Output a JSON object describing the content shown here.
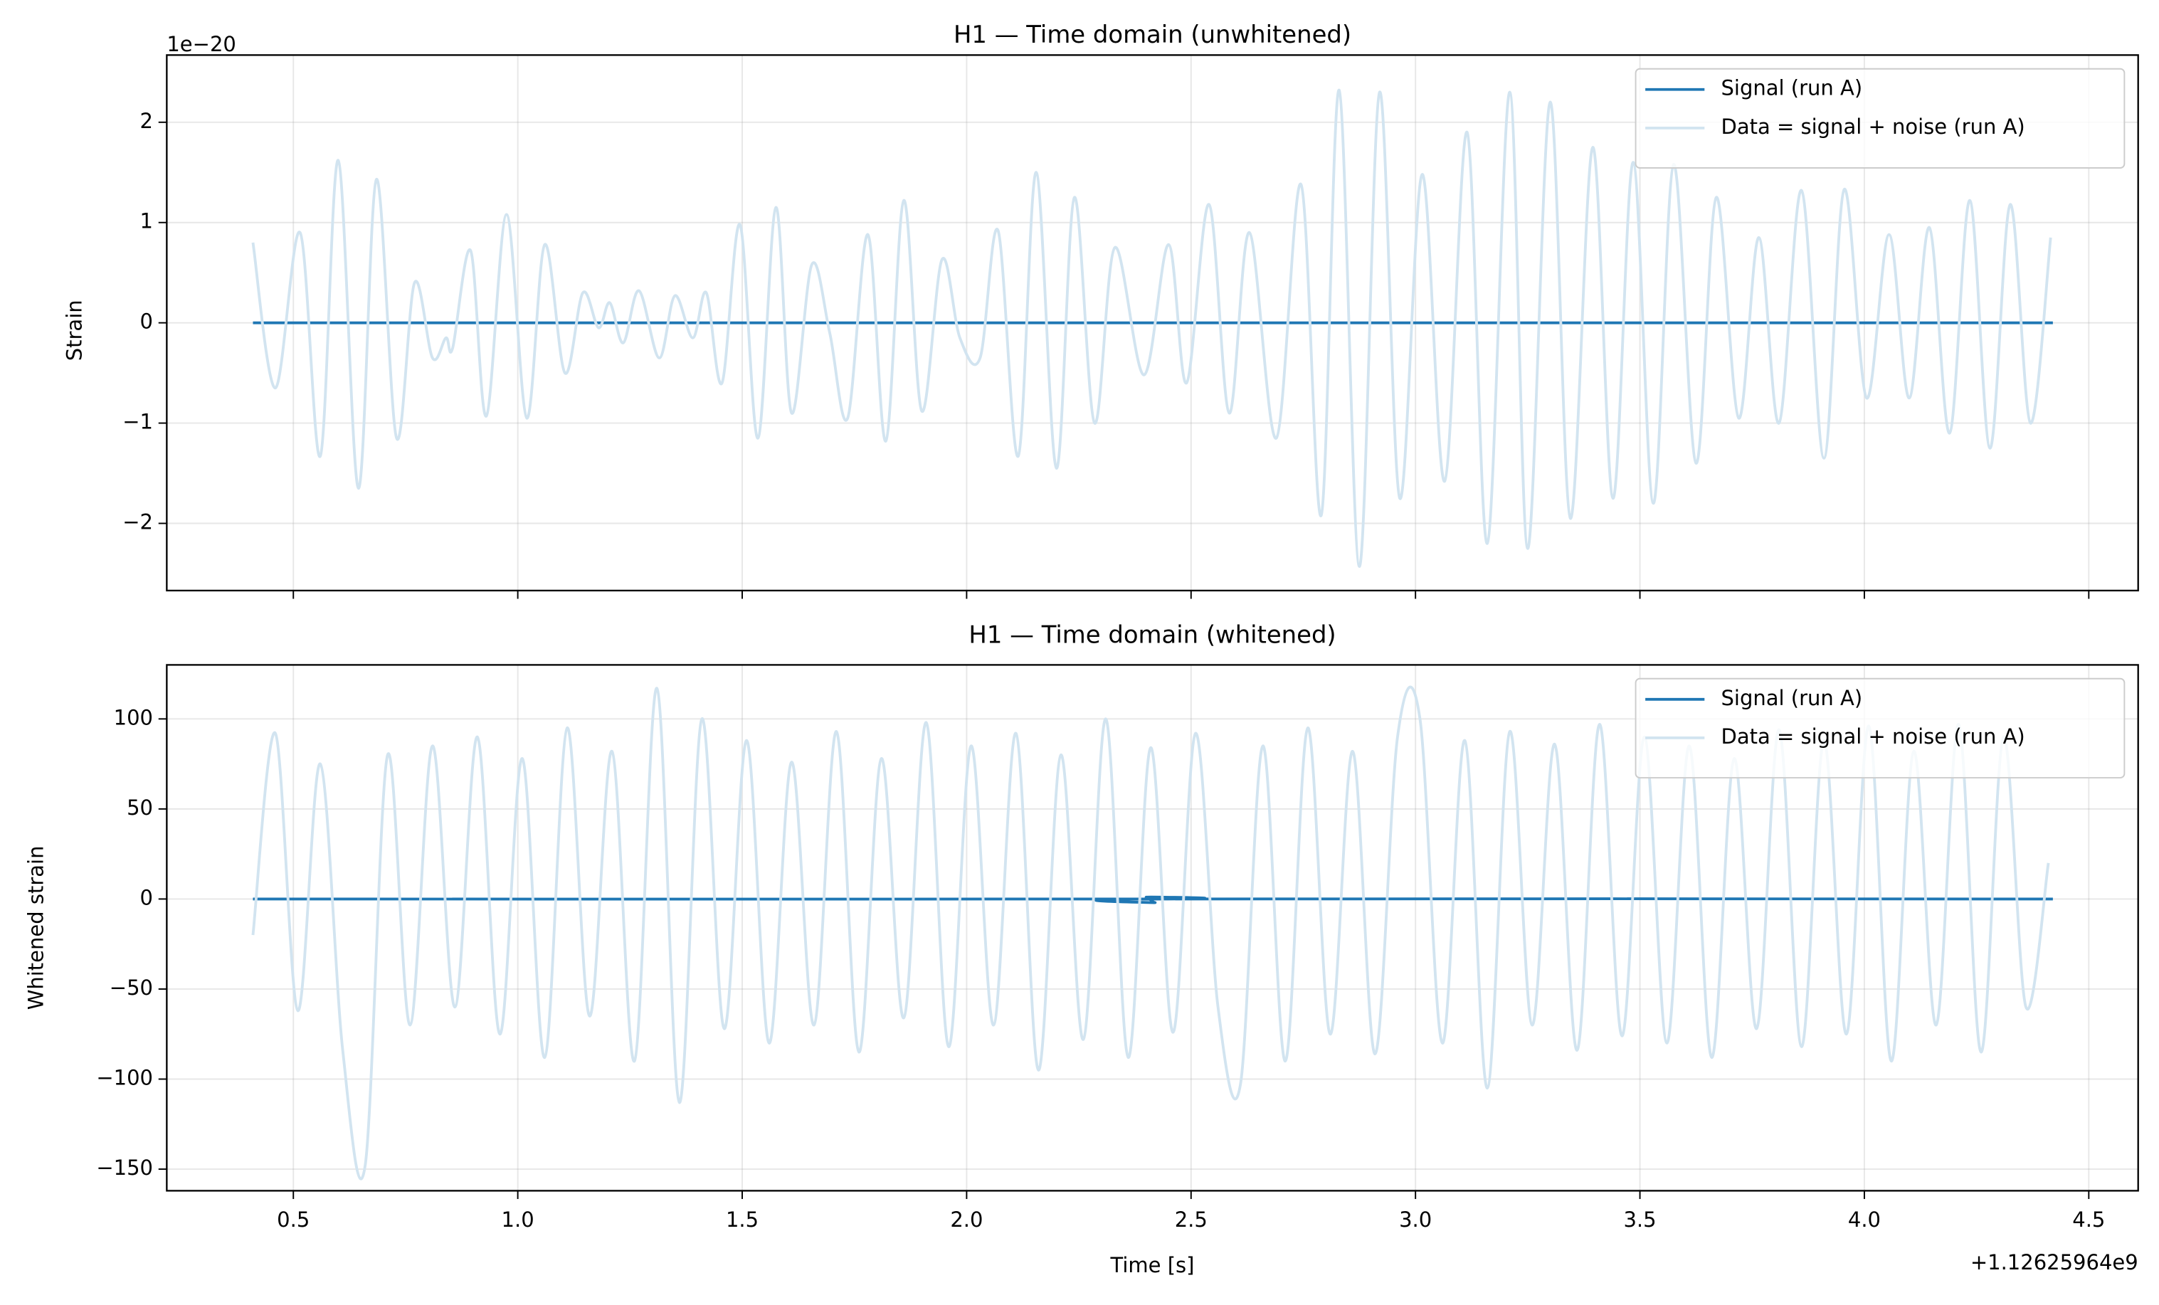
{
  "chart_data": [
    {
      "type": "line",
      "title": "H1 — Time domain (unwhitened)",
      "ylabel": "Strain",
      "y_offset_text": "1e−20",
      "xlim": [
        0.218,
        4.61
      ],
      "ylim": [
        -2.67,
        2.67
      ],
      "xticks": [
        0.5,
        {
          "value": 1,
          "label": "1.0"
        },
        1.5,
        {
          "value": 2,
          "label": "2.0"
        },
        2.5,
        {
          "value": 3,
          "label": "3.0"
        },
        3.5,
        {
          "value": 4,
          "label": "4.0"
        },
        4.5
      ],
      "yticks": [
        {
          "value": -2,
          "label": "−2"
        },
        {
          "value": -1,
          "label": "−1"
        },
        0,
        1,
        2
      ],
      "grid": true,
      "legend": "upper right",
      "series": [
        {
          "name": "Signal (run A)",
          "color": "#1f77b4",
          "x": [
            0.41,
            4.42
          ],
          "values": [
            0,
            0
          ]
        },
        {
          "name": "Data = signal + noise (run A)",
          "color": "#d2e4f0",
          "x": [
            0.41,
            0.46,
            0.515,
            0.56,
            0.6,
            0.645,
            0.685,
            0.73,
            0.77,
            0.81,
            0.84,
            0.855,
            0.895,
            0.93,
            0.975,
            1.02,
            1.06,
            1.105,
            1.145,
            1.18,
            1.205,
            1.235,
            1.27,
            1.315,
            1.35,
            1.39,
            1.42,
            1.455,
            1.495,
            1.535,
            1.575,
            1.61,
            1.655,
            1.695,
            1.735,
            1.78,
            1.82,
            1.86,
            1.9,
            1.945,
            1.985,
            2.03,
            2.07,
            2.115,
            2.155,
            2.2,
            2.24,
            2.285,
            2.33,
            2.395,
            2.45,
            2.49,
            2.54,
            2.585,
            2.63,
            2.69,
            2.745,
            2.79,
            2.83,
            2.875,
            2.92,
            2.965,
            3.015,
            3.065,
            3.115,
            3.16,
            3.21,
            3.25,
            3.3,
            3.345,
            3.395,
            3.44,
            3.485,
            3.53,
            3.575,
            3.625,
            3.67,
            3.72,
            3.765,
            3.81,
            3.86,
            3.91,
            3.955,
            4.005,
            4.055,
            4.1,
            4.145,
            4.19,
            4.235,
            4.28,
            4.325,
            4.37,
            4.415
          ],
          "values": [
            0.8,
            -0.65,
            0.9,
            -1.33,
            1.62,
            -1.65,
            1.43,
            -1.15,
            0.4,
            -0.35,
            -0.15,
            -0.25,
            0.72,
            -0.93,
            1.08,
            -0.95,
            0.78,
            -0.5,
            0.3,
            -0.05,
            0.2,
            -0.2,
            0.32,
            -0.35,
            0.27,
            -0.15,
            0.3,
            -0.6,
            0.98,
            -1.15,
            1.15,
            -0.9,
            0.58,
            -0.1,
            -0.95,
            0.88,
            -1.18,
            1.22,
            -0.88,
            0.63,
            -0.15,
            -0.35,
            0.92,
            -1.33,
            1.5,
            -1.45,
            1.25,
            -1.0,
            0.75,
            -0.52,
            0.78,
            -0.6,
            1.18,
            -0.9,
            0.9,
            -1.15,
            1.38,
            -1.92,
            2.32,
            -2.43,
            2.3,
            -1.75,
            1.48,
            -1.58,
            1.9,
            -2.2,
            2.3,
            -2.25,
            2.2,
            -1.95,
            1.75,
            -1.75,
            1.6,
            -1.8,
            1.58,
            -1.4,
            1.25,
            -0.95,
            0.85,
            -1.0,
            1.32,
            -1.35,
            1.33,
            -0.75,
            0.88,
            -0.75,
            0.95,
            -1.1,
            1.22,
            -1.25,
            1.18,
            -1.0,
            0.85
          ]
        }
      ]
    },
    {
      "type": "line",
      "title": "H1 — Time domain (whitened)",
      "ylabel": "Whitened strain",
      "xlabel": "Time [s]",
      "x_offset_text": "+1.12625964e9",
      "xlim": [
        0.218,
        4.61
      ],
      "ylim": [
        -162,
        130
      ],
      "xticks": [
        0.5,
        {
          "value": 1,
          "label": "1.0"
        },
        1.5,
        {
          "value": 2,
          "label": "2.0"
        },
        2.5,
        {
          "value": 3,
          "label": "3.0"
        },
        3.5,
        {
          "value": 4,
          "label": "4.0"
        },
        4.5
      ],
      "yticks": [
        {
          "value": -150,
          "label": "−150"
        },
        {
          "value": -100,
          "label": "−100"
        },
        {
          "value": -50,
          "label": "−50"
        },
        0,
        50,
        100
      ],
      "grid": true,
      "legend": "upper right",
      "series": [
        {
          "name": "Signal (run A)",
          "color": "#1f77b4",
          "x": [
            0.41,
            2.38,
            2.4,
            2.42,
            2.44,
            4.42
          ],
          "values": [
            0,
            0,
            1,
            -2,
            0,
            0
          ]
        },
        {
          "name": "Data = signal + noise (run A)",
          "color": "#d2e4f0",
          "x": [
            0.41,
            0.46,
            0.51,
            0.56,
            0.61,
            0.66,
            0.71,
            0.76,
            0.81,
            0.86,
            0.91,
            0.96,
            1.01,
            1.06,
            1.11,
            1.16,
            1.21,
            1.26,
            1.31,
            1.36,
            1.41,
            1.46,
            1.51,
            1.56,
            1.61,
            1.66,
            1.71,
            1.76,
            1.81,
            1.86,
            1.91,
            1.96,
            2.01,
            2.06,
            2.11,
            2.16,
            2.21,
            2.26,
            2.31,
            2.36,
            2.41,
            2.46,
            2.51,
            2.56,
            2.61,
            2.66,
            2.71,
            2.76,
            2.81,
            2.86,
            2.91,
            2.96,
            3.01,
            3.06,
            3.11,
            3.16,
            3.21,
            3.26,
            3.31,
            3.36,
            3.41,
            3.46,
            3.51,
            3.56,
            3.61,
            3.66,
            3.71,
            3.76,
            3.81,
            3.86,
            3.91,
            3.96,
            4.01,
            4.06,
            4.11,
            4.16,
            4.21,
            4.26,
            4.31,
            4.36,
            4.41
          ],
          "values": [
            -20,
            92,
            -62,
            75,
            -84,
            -148,
            80,
            -70,
            85,
            -60,
            90,
            -75,
            78,
            -88,
            95,
            -65,
            82,
            -90,
            117,
            -113,
            100,
            -72,
            88,
            -80,
            76,
            -70,
            93,
            -85,
            78,
            -66,
            98,
            -82,
            85,
            -70,
            92,
            -95,
            80,
            -78,
            100,
            -88,
            84,
            -74,
            92,
            -60,
            -103,
            85,
            -90,
            95,
            -75,
            82,
            -86,
            90,
            100,
            -80,
            88,
            -105,
            93,
            -70,
            86,
            -84,
            97,
            -76,
            90,
            -80,
            85,
            -88,
            78,
            -72,
            94,
            -82,
            88,
            -75,
            96,
            -90,
            82,
            -70,
            97,
            -85,
            90,
            -60,
            20
          ]
        }
      ]
    }
  ]
}
